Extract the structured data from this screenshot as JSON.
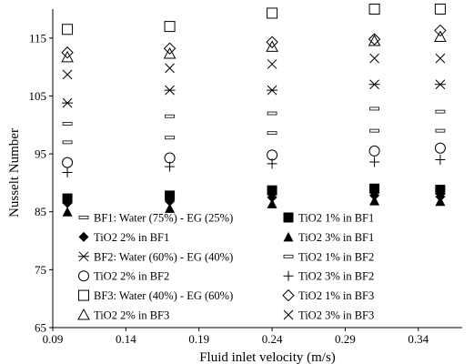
{
  "chart_data": {
    "type": "scatter",
    "title": "",
    "xlabel": "Fluid inlet velocity (m/s)",
    "ylabel": "Nusselt Number",
    "xlim": [
      0.09,
      0.37
    ],
    "ylim": [
      65,
      120
    ],
    "xticks": [
      0.09,
      0.14,
      0.19,
      0.24,
      0.29,
      0.34
    ],
    "xtick_labels": [
      "0.09",
      "0.14",
      "0.19",
      "0.24",
      "0.29",
      "0.34"
    ],
    "yticks": [
      65,
      75,
      85,
      95,
      105,
      115
    ],
    "ytick_labels": [
      "65",
      "75",
      "85",
      "95",
      "105",
      "115"
    ],
    "grid": false,
    "legend_placement": "bottom-inside",
    "series": [
      {
        "name": "BF1: Water (75%) - EG (25%)",
        "marker": "dash",
        "x": [
          0.1,
          0.17,
          0.24,
          0.31,
          0.355
        ],
        "y": [
          97.0,
          97.8,
          98.6,
          99.0,
          99.0
        ]
      },
      {
        "name": "TiO2 1% in BF1",
        "marker": "filled-square",
        "x": [
          0.1,
          0.17,
          0.24,
          0.31,
          0.355
        ],
        "y": [
          87.3,
          87.8,
          88.7,
          89.0,
          88.8
        ]
      },
      {
        "name": "TiO2 2% in BF1",
        "marker": "filled-diamond",
        "x": [
          0.1,
          0.17,
          0.24,
          0.31,
          0.355
        ],
        "y": [
          86.5,
          86.8,
          87.5,
          87.8,
          87.6
        ]
      },
      {
        "name": "TiO2 3% in BF1",
        "marker": "filled-triangle",
        "x": [
          0.1,
          0.17,
          0.24,
          0.31,
          0.355
        ],
        "y": [
          85.0,
          85.6,
          86.4,
          86.9,
          86.8
        ]
      },
      {
        "name": "BF2: Water (60%) - EG (40%)",
        "marker": "asterisk",
        "x": [
          0.1,
          0.17,
          0.24,
          0.31,
          0.355
        ],
        "y": [
          103.8,
          106.0,
          106.0,
          107.0,
          107.0
        ]
      },
      {
        "name": "TiO2 1% in BF2",
        "marker": "dash",
        "x": [
          0.1,
          0.17,
          0.24,
          0.31,
          0.355
        ],
        "y": [
          100.2,
          101.5,
          102.0,
          102.8,
          102.3
        ]
      },
      {
        "name": "TiO2 2% in BF2",
        "marker": "open-circle",
        "x": [
          0.1,
          0.17,
          0.24,
          0.31,
          0.355
        ],
        "y": [
          93.5,
          94.3,
          94.8,
          95.5,
          96.0
        ]
      },
      {
        "name": "TiO2 3% in BF2",
        "marker": "plus",
        "x": [
          0.1,
          0.17,
          0.24,
          0.31,
          0.355
        ],
        "y": [
          91.8,
          92.8,
          93.3,
          93.6,
          94.0
        ]
      },
      {
        "name": "BF3: Water (40%) - EG (60%)",
        "marker": "open-square",
        "x": [
          0.1,
          0.17,
          0.24,
          0.31,
          0.355
        ],
        "y": [
          116.5,
          117.0,
          119.3,
          120.0,
          120.0
        ]
      },
      {
        "name": "TiO2 1% in BF3",
        "marker": "open-diamond",
        "x": [
          0.1,
          0.17,
          0.24,
          0.31,
          0.355
        ],
        "y": [
          112.5,
          113.2,
          114.3,
          114.8,
          116.3
        ]
      },
      {
        "name": "TiO2 2% in BF3",
        "marker": "open-triangle",
        "x": [
          0.1,
          0.17,
          0.24,
          0.31,
          0.355
        ],
        "y": [
          111.7,
          112.3,
          113.5,
          114.5,
          115.2
        ]
      },
      {
        "name": "TiO2 3% in BF3",
        "marker": "x-cross",
        "x": [
          0.1,
          0.17,
          0.24,
          0.31,
          0.355
        ],
        "y": [
          108.7,
          109.8,
          110.5,
          111.5,
          111.5
        ]
      }
    ]
  }
}
